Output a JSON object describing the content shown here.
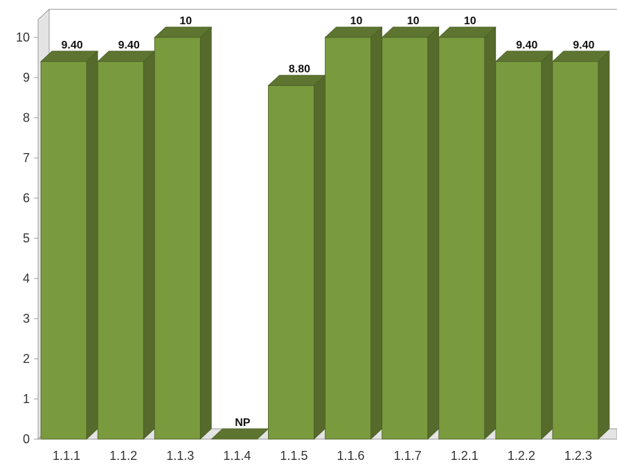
{
  "chart_data": {
    "type": "bar",
    "categories": [
      "1.1.1",
      "1.1.2",
      "1.1.3",
      "1.1.4",
      "1.1.5",
      "1.1.6",
      "1.1.7",
      "1.2.1",
      "1.2.2",
      "1.2.3"
    ],
    "values": [
      9.4,
      9.4,
      10,
      0,
      8.8,
      10,
      10,
      10,
      9.4,
      9.4
    ],
    "data_labels": [
      "9.40",
      "9.40",
      "10",
      "NP",
      "8.80",
      "10",
      "10",
      "10",
      "9.40",
      "9.40"
    ],
    "yticks": [
      "0",
      "1",
      "2",
      "3",
      "4",
      "5",
      "6",
      "7",
      "8",
      "9",
      "10"
    ],
    "ylim": [
      0,
      10.7
    ],
    "grid": false,
    "three_d": true,
    "colors": {
      "bar_front": "#7a9a3e",
      "bar_side": "#566a2c",
      "bar_top": "#5e7531",
      "bar_edge": "#4a5c26",
      "wall": "#e4e4e4",
      "axis": "#999999"
    }
  }
}
